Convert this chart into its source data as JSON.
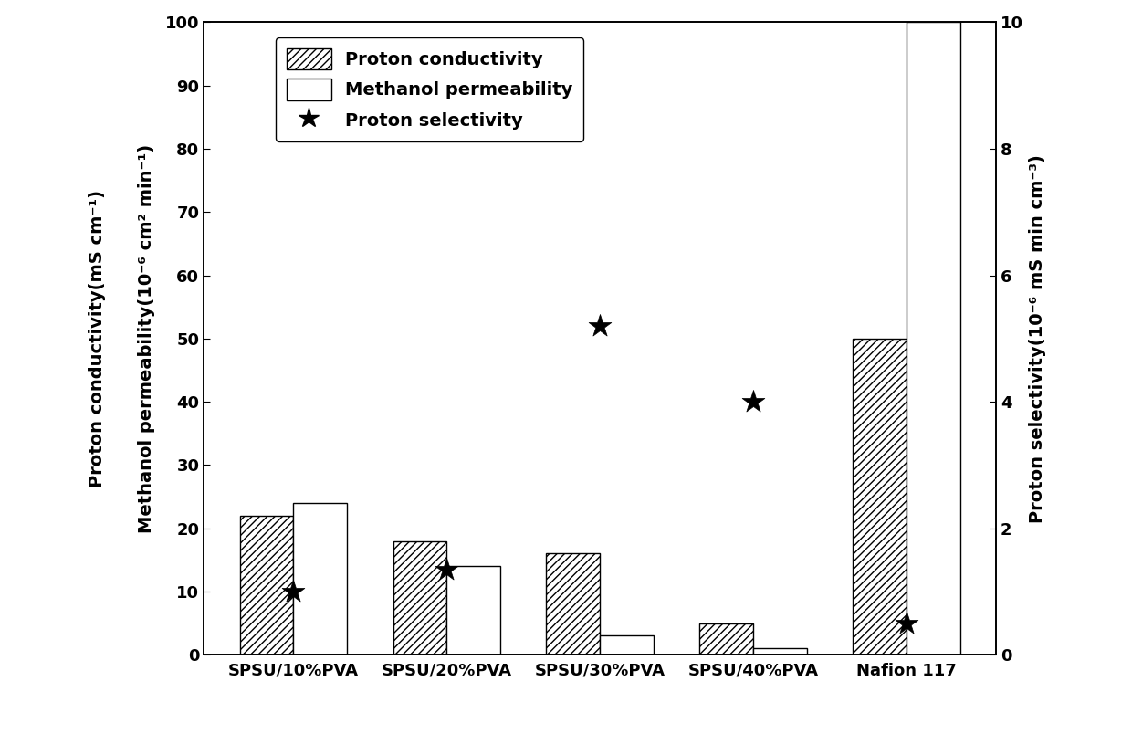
{
  "categories": [
    "SPSU/10%PVA",
    "SPSU/20%PVA",
    "SPSU/30%PVA",
    "SPSU/40%PVA",
    "Nafion 117"
  ],
  "proton_conductivity": [
    22,
    18,
    16,
    5,
    50
  ],
  "methanol_permeability": [
    24,
    14,
    3,
    1,
    100
  ],
  "proton_selectivity": [
    1.0,
    1.35,
    5.2,
    4.0,
    0.5
  ],
  "left_ylim": [
    0,
    100
  ],
  "right_ylim": [
    0,
    10
  ],
  "left_yticks": [
    0,
    10,
    20,
    30,
    40,
    50,
    60,
    70,
    80,
    90,
    100
  ],
  "right_yticks": [
    0,
    2,
    4,
    6,
    8,
    10
  ],
  "left_ylabel1": "Proton conductivity(mS cm⁻¹)",
  "left_ylabel2": "Methanol permeability(10⁻⁶ cm² min⁻¹)",
  "right_ylabel": "Proton selectivity(10⁻⁶ mS min cm⁻³)",
  "legend_labels": [
    "Proton conductivity",
    "Methanol permeability",
    "Proton selectivity"
  ],
  "bar_width": 0.35,
  "hatch_pattern": "////",
  "fig_width": 12.4,
  "fig_height": 8.15,
  "dpi": 100,
  "background_color": "#ffffff",
  "bar_color_hatched": "#ffffff",
  "bar_color_white": "#ffffff",
  "bar_edge_color": "#000000",
  "star_color": "#000000",
  "font_size_ylabel1": 14,
  "font_size_ylabel2": 14,
  "font_size_right_ylabel": 14,
  "font_size_ticks": 13,
  "font_size_legend": 14
}
